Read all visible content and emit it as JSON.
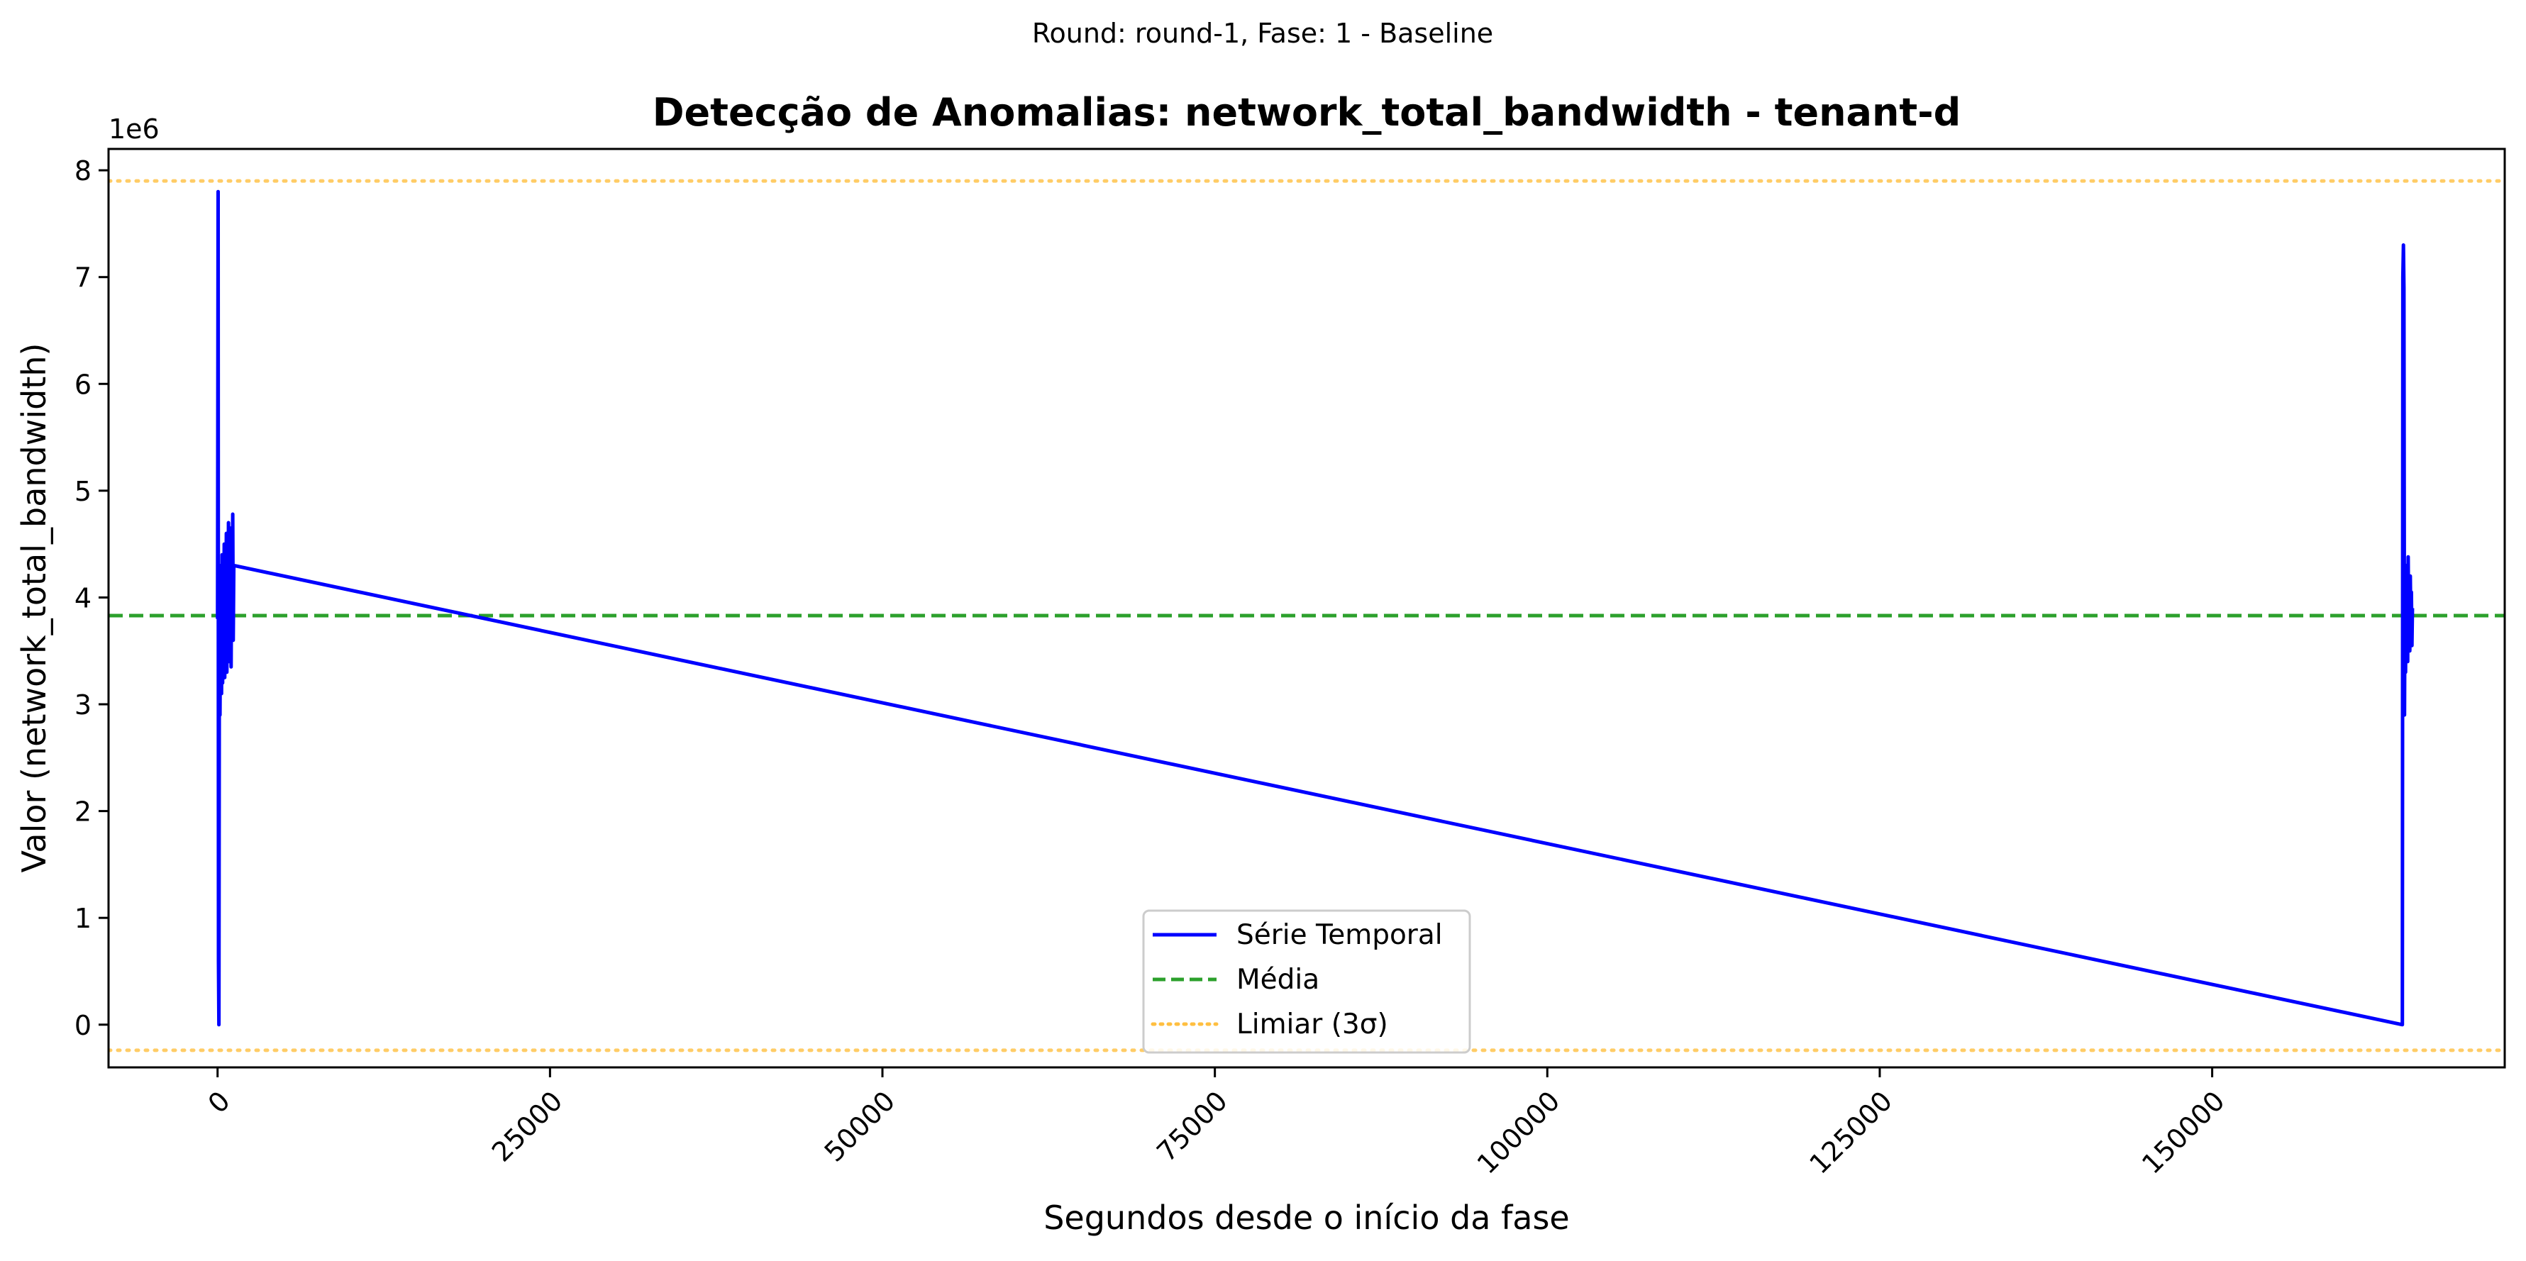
{
  "suptitle": "Round: round-1, Fase: 1 - Baseline",
  "chart_data": {
    "type": "line",
    "title": "Detecção de Anomalias: network_total_bandwidth - tenant-d",
    "xlabel": "Segundos desde o início da fase",
    "ylabel": "Valor (network_total_bandwidth)",
    "y_offset_label": "1e6",
    "y_scale": 1000000,
    "xlim": [
      -8200,
      172000
    ],
    "ylim": [
      -400000,
      8200000
    ],
    "x_ticks": [
      0,
      25000,
      50000,
      75000,
      100000,
      125000,
      150000
    ],
    "x_tick_labels": [
      "0",
      "25000",
      "50000",
      "75000",
      "100000",
      "125000",
      "150000"
    ],
    "y_ticks": [
      0,
      1000000,
      2000000,
      3000000,
      4000000,
      5000000,
      6000000,
      7000000,
      8000000
    ],
    "y_tick_labels": [
      "0",
      "1",
      "2",
      "3",
      "4",
      "5",
      "6",
      "7",
      "8"
    ],
    "x_tick_rotation_deg": -45,
    "grid": false,
    "legend_position": "bottom-center",
    "series": [
      {
        "name": "Série Temporal",
        "color": "#0000ff",
        "style": "solid",
        "points": [
          [
            0,
            3800000
          ],
          [
            40,
            7800000
          ],
          [
            70,
            600000
          ],
          [
            100,
            0
          ],
          [
            140,
            4000000
          ],
          [
            180,
            2900000
          ],
          [
            220,
            3700000
          ],
          [
            260,
            4300000
          ],
          [
            300,
            3100000
          ],
          [
            340,
            4400000
          ],
          [
            380,
            3200000
          ],
          [
            420,
            4200000
          ],
          [
            460,
            3500000
          ],
          [
            500,
            4500000
          ],
          [
            540,
            3250000
          ],
          [
            580,
            4300000
          ],
          [
            620,
            3600000
          ],
          [
            660,
            4600000
          ],
          [
            700,
            3300000
          ],
          [
            740,
            4400000
          ],
          [
            780,
            3700000
          ],
          [
            820,
            4700000
          ],
          [
            860,
            3400000
          ],
          [
            900,
            4500000
          ],
          [
            940,
            3750000
          ],
          [
            980,
            4650000
          ],
          [
            1020,
            3350000
          ],
          [
            1060,
            4400000
          ],
          [
            1100,
            3800000
          ],
          [
            1140,
            4780000
          ],
          [
            1180,
            3600000
          ],
          [
            1220,
            4300000
          ],
          [
            164300,
            0
          ],
          [
            164340,
            7000000
          ],
          [
            164380,
            7300000
          ],
          [
            164420,
            6900000
          ],
          [
            164460,
            2900000
          ],
          [
            164500,
            4100000
          ],
          [
            164540,
            3300000
          ],
          [
            164580,
            4300000
          ],
          [
            164620,
            3500000
          ],
          [
            164660,
            4200000
          ],
          [
            164700,
            3400000
          ],
          [
            164740,
            4380000
          ],
          [
            164780,
            3600000
          ],
          [
            164820,
            4100000
          ],
          [
            164860,
            3500000
          ],
          [
            164900,
            4200000
          ],
          [
            164940,
            3700000
          ],
          [
            164980,
            4050000
          ],
          [
            165020,
            3550000
          ],
          [
            165060,
            3900000
          ]
        ]
      },
      {
        "name": "Média",
        "color": "#2ca02c",
        "style": "dashed",
        "y": 3830000
      },
      {
        "name": "Limiar (3σ)",
        "color": "#ffbf40",
        "style": "dotted",
        "y_values": [
          7900000,
          -240000
        ]
      }
    ]
  }
}
